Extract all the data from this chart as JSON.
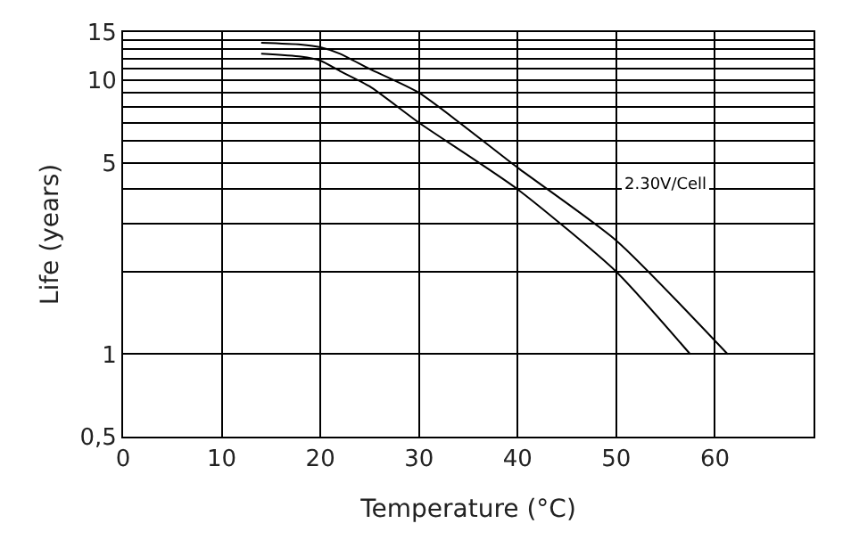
{
  "chart_data": {
    "type": "line",
    "xlabel": "Temperature (°C)",
    "ylabel": "Life (years)",
    "series": [
      {
        "color": "#000000",
        "x": [
          14,
          18,
          20,
          22,
          25,
          30,
          40,
          50,
          61.3
        ],
        "values": [
          13.7,
          13.5,
          13.2,
          12.5,
          11,
          9,
          4.8,
          2.6,
          1
        ]
      },
      {
        "color": "#000000",
        "x": [
          14,
          18,
          20,
          22,
          25,
          30,
          40,
          50,
          57.5
        ],
        "values": [
          12.5,
          12.2,
          11.8,
          10.8,
          9.5,
          7,
          4,
          2,
          1
        ]
      }
    ],
    "annotations": [
      "2.30V/Cell"
    ],
    "log": "y",
    "xlim": [
      0,
      70
    ],
    "xticks": [
      0,
      10,
      20,
      30,
      40,
      50,
      60,
      {
        "value": 70,
        "label": null
      }
    ],
    "ylim": [
      0.5,
      15
    ],
    "yticks": [
      {
        "value": 0.5,
        "label": "0,5"
      },
      1,
      {
        "value": 2,
        "label": null
      },
      {
        "value": 3,
        "label": null
      },
      {
        "value": 4,
        "label": null
      },
      5,
      {
        "value": 6,
        "label": null
      },
      {
        "value": 7,
        "label": null
      },
      {
        "value": 8,
        "label": null
      },
      {
        "value": 9,
        "label": null
      },
      10,
      {
        "value": 11,
        "label": null
      },
      {
        "value": 12,
        "label": null
      },
      {
        "value": 13,
        "label": null
      },
      {
        "value": 14,
        "label": null
      },
      15
    ],
    "grid": true,
    "marker": "none",
    "line_style": "solid"
  }
}
